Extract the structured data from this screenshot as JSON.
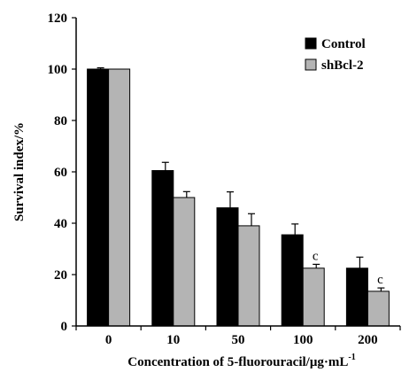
{
  "chart_data": {
    "type": "bar",
    "title": "",
    "xlabel_main": "Concentration of 5-fluorouracil/",
    "xlabel_unit": "μg·mL",
    "xlabel_sup": "-1",
    "ylabel": "Survival index/%",
    "categories": [
      "0",
      "10",
      "50",
      "100",
      "200"
    ],
    "ylim": [
      0,
      120
    ],
    "yticks": [
      "0",
      "20",
      "40",
      "60",
      "80",
      "100",
      "120"
    ],
    "legend_position": "top-right",
    "grid": false,
    "series": [
      {
        "name": "Control",
        "color": "#000000",
        "values": [
          100,
          60.5,
          46,
          35.5,
          22.5
        ],
        "errors": [
          0.5,
          3.2,
          6.2,
          4.2,
          4.3
        ],
        "annotations": [
          "",
          "",
          "",
          "",
          ""
        ]
      },
      {
        "name": "shBcl-2",
        "color": "#b4b4b4",
        "values": [
          100,
          50,
          39,
          22.5,
          13.5
        ],
        "errors": [
          0,
          2.3,
          4.7,
          1.5,
          1.3
        ],
        "annotations": [
          "",
          "",
          "",
          "c",
          "c"
        ]
      }
    ]
  }
}
